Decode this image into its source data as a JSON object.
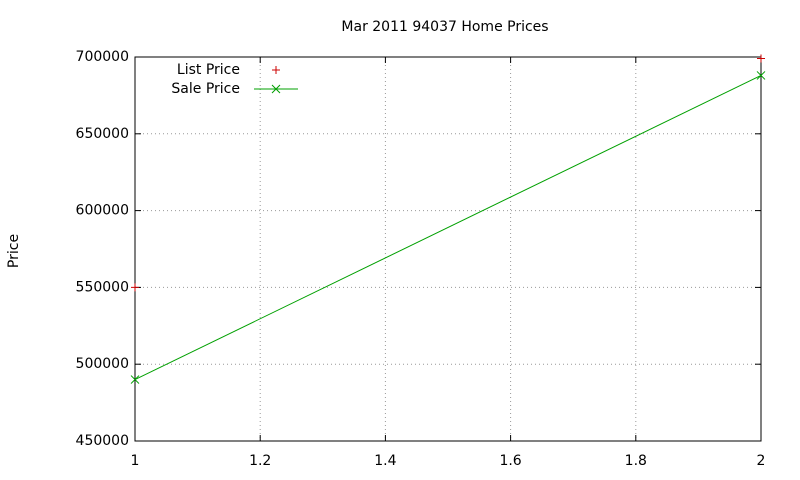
{
  "chart_data": {
    "type": "line",
    "title": "Mar 2011 94037 Home Prices",
    "ylabel": "Price",
    "x": [
      1,
      2
    ],
    "series": [
      {
        "name": "List Price",
        "color": "#cc0000",
        "marker": "plus",
        "line": false,
        "values": [
          550000,
          699000
        ]
      },
      {
        "name": "Sale Price",
        "color": "#00a000",
        "marker": "cross",
        "line": true,
        "values": [
          490000,
          688000
        ]
      }
    ],
    "xlim": [
      1,
      2
    ],
    "xticks": [
      1,
      1.2,
      1.4,
      1.6,
      1.8,
      2
    ],
    "ylim": [
      450000,
      700000
    ],
    "yticks": [
      450000,
      500000,
      550000,
      600000,
      650000,
      700000
    ],
    "grid": true,
    "legend": "top-left"
  }
}
